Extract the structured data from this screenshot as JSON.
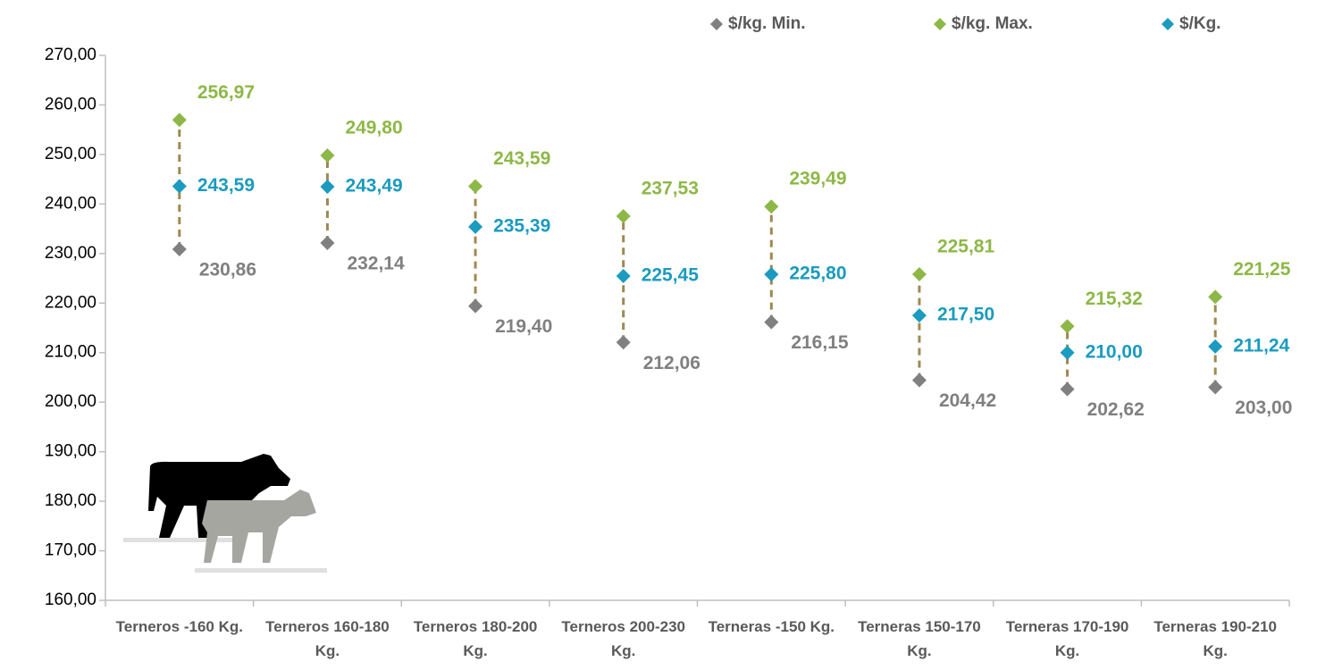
{
  "chart_data": {
    "type": "scatter",
    "categories": [
      "Terneros -160 Kg.",
      "Terneros 160-180 Kg.",
      "Terneros 180-200 Kg.",
      "Terneros 200-230 Kg.",
      "Terneras -150 Kg.",
      "Terneras 150-170 Kg.",
      "Terneras 170-190 Kg.",
      "Terneras 190-210 Kg."
    ],
    "series": [
      {
        "name": "$/kg. Min.",
        "color": "#808080",
        "values": [
          230.86,
          232.14,
          219.4,
          212.06,
          216.15,
          204.42,
          202.62,
          203.0
        ],
        "value_labels": [
          "230,86",
          "232,14",
          "219,40",
          "212,06",
          "216,15",
          "204,42",
          "202,62",
          "203,00"
        ]
      },
      {
        "name": "$/kg. Max.",
        "color": "#8db847",
        "values": [
          256.97,
          249.8,
          243.59,
          237.53,
          239.49,
          225.81,
          215.32,
          221.25
        ],
        "value_labels": [
          "256,97",
          "249,80",
          "243,59",
          "237,53",
          "239,49",
          "225,81",
          "215,32",
          "221,25"
        ]
      },
      {
        "name": "$/Kg.",
        "color": "#1a9bbf",
        "values": [
          243.59,
          243.49,
          235.39,
          225.45,
          225.8,
          217.5,
          210.0,
          211.24
        ],
        "value_labels": [
          "243,59",
          "243,49",
          "235,39",
          "225,45",
          "225,80",
          "217,50",
          "210,00",
          "211,24"
        ]
      }
    ],
    "ylim": [
      160,
      270
    ],
    "yticks": [
      {
        "value": 160,
        "label": "160,00"
      },
      {
        "value": 170,
        "label": "170,00"
      },
      {
        "value": 180,
        "label": "180,00"
      },
      {
        "value": 190,
        "label": "190,00"
      },
      {
        "value": 200,
        "label": "200,00"
      },
      {
        "value": 210,
        "label": "210,00"
      },
      {
        "value": 220,
        "label": "220,00"
      },
      {
        "value": 230,
        "label": "230,00"
      },
      {
        "value": 240,
        "label": "240,00"
      },
      {
        "value": 250,
        "label": "250,00"
      },
      {
        "value": 260,
        "label": "260,00"
      },
      {
        "value": 270,
        "label": "270,00"
      }
    ],
    "range_line_color": "#9c8a52",
    "legend": "top-right"
  }
}
